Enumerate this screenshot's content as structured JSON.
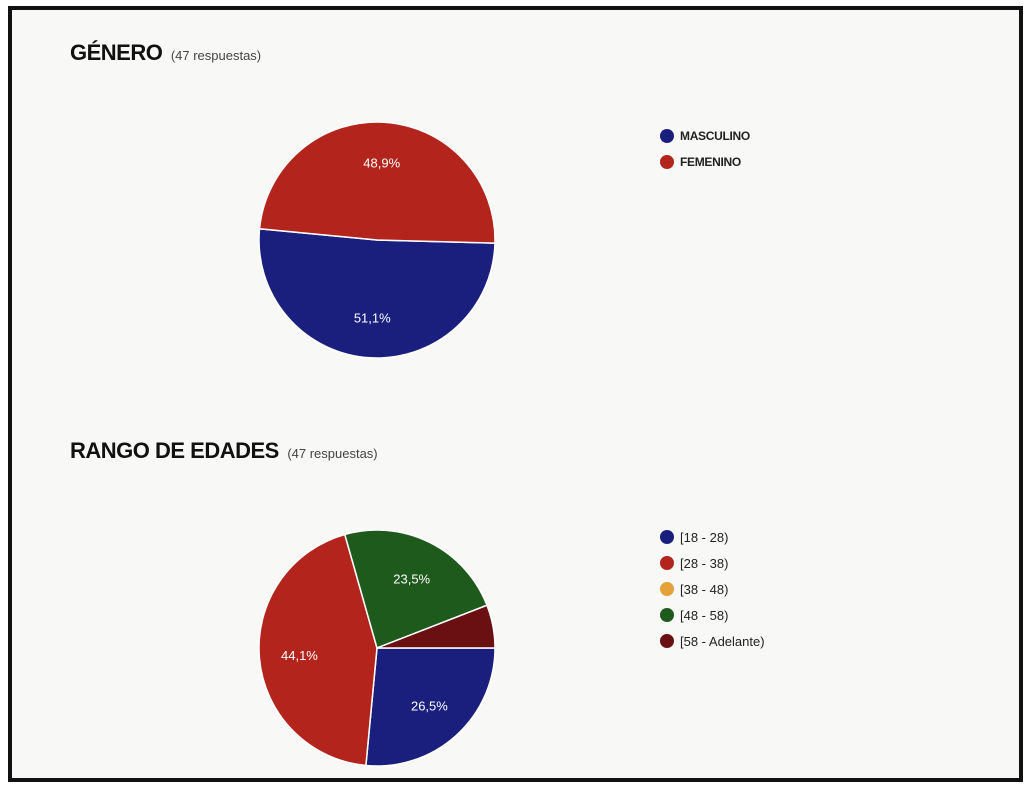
{
  "chart_data": [
    {
      "type": "pie",
      "title": "GÉNERO",
      "subtitle": "(47 respuestas)",
      "categories": [
        "MASCULINO",
        "FEMENINO"
      ],
      "values": [
        51.1,
        48.9
      ],
      "data_labels": [
        "51,1%",
        "48,9%"
      ],
      "colors": [
        "#1a1f7e",
        "#b3241c"
      ],
      "legend": "right"
    },
    {
      "type": "pie",
      "title": "RANGO DE EDADES",
      "subtitle": "(47 respuestas)",
      "categories": [
        "[18 - 28)",
        "[28 - 38)",
        "[38 - 48)",
        "[48 - 58)",
        "[58 - Adelante)"
      ],
      "values": [
        26.5,
        44.1,
        0,
        23.5,
        5.9
      ],
      "data_labels": [
        "26,5%",
        "44,1%",
        "",
        "23,5%",
        ""
      ],
      "colors": [
        "#1a1f7e",
        "#b3241c",
        "#e6a23a",
        "#1f5a1d",
        "#6a0f12"
      ],
      "legend": "right"
    }
  ]
}
